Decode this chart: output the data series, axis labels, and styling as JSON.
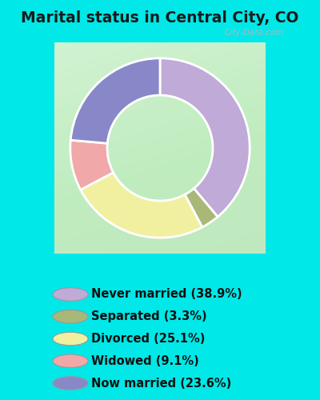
{
  "title": "Marital status in Central City, CO",
  "categories": [
    "Never married",
    "Separated",
    "Divorced",
    "Widowed",
    "Now married"
  ],
  "values": [
    38.9,
    3.3,
    25.1,
    9.1,
    23.6
  ],
  "pie_order": [
    "Never married",
    "Separated",
    "Divorced",
    "Widowed",
    "Now married"
  ],
  "pie_values_ordered": [
    38.9,
    3.3,
    25.1,
    9.1,
    23.6
  ],
  "pie_colors_ordered": [
    "#c0aad8",
    "#a8b878",
    "#f0f0a0",
    "#f0a8a8",
    "#8888c8"
  ],
  "legend_colors": [
    "#c0aad8",
    "#a8b878",
    "#f0f0a0",
    "#f0a8a8",
    "#8888c8"
  ],
  "legend_labels": [
    "Never married (38.9%)",
    "Separated (3.3%)",
    "Divorced (25.1%)",
    "Widowed (9.1%)",
    "Now married (23.6%)"
  ],
  "chart_bg_color": "#d8f0d8",
  "outer_bg_color": "#00e8e8",
  "title_fontsize": 13.5,
  "legend_fontsize": 10.5,
  "watermark": "City-Data.com",
  "start_angle": 90,
  "donut_width": 0.35
}
